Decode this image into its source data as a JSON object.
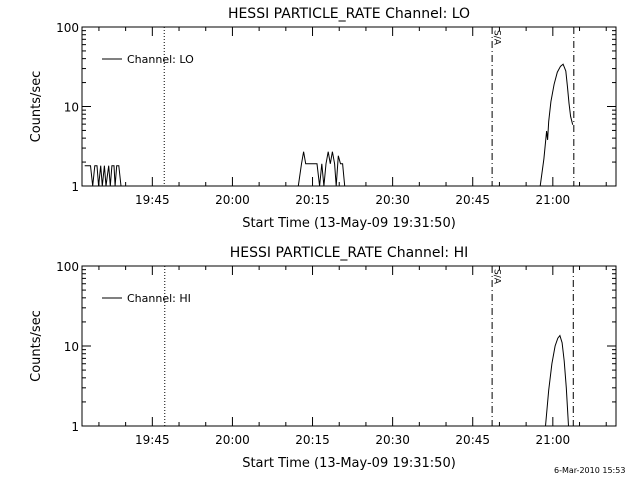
{
  "footer": {
    "timestamp": "6-Mar-2010 15:53"
  },
  "chart_data": [
    {
      "type": "line",
      "title": "HESSI PARTICLE_RATE Channel: LO",
      "xlabel": "Start Time (13-May-09 19:31:50)",
      "ylabel": "Counts/sec",
      "x_axis_unit": "minutes after 19:31:50 (13-May-09)",
      "xlim": [
        0,
        100
      ],
      "ylim": [
        1,
        100
      ],
      "yscale": "log",
      "x_ticks": [
        {
          "t": 13.17,
          "label": "19:45"
        },
        {
          "t": 28.17,
          "label": "20:00"
        },
        {
          "t": 43.17,
          "label": "20:15"
        },
        {
          "t": 58.17,
          "label": "20:30"
        },
        {
          "t": 73.17,
          "label": "20:45"
        },
        {
          "t": 88.17,
          "label": "21:00"
        }
      ],
      "y_ticks": [
        {
          "v": 1,
          "label": "1"
        },
        {
          "v": 10,
          "label": "10"
        },
        {
          "v": 100,
          "label": "100"
        }
      ],
      "grid": false,
      "legend": {
        "position": "top-left",
        "entries": [
          "Channel: LO"
        ]
      },
      "annotations": [
        {
          "text": "S/A",
          "at_t": 76.9
        }
      ],
      "vlines": [
        {
          "t": 15.4,
          "style": "dotted"
        },
        {
          "t": 76.8,
          "style": "dash-dot"
        },
        {
          "t": 92.1,
          "style": "dash-dot"
        }
      ],
      "series": [
        {
          "name": "Channel: LO",
          "x": [
            0.5,
            1.6,
            2.0,
            2.4,
            2.8,
            3.1,
            3.5,
            3.8,
            4.2,
            4.5,
            5.0,
            5.3,
            5.6,
            6.0,
            6.2,
            6.5,
            6.9,
            7.3
          ],
          "y": [
            1.8,
            1.8,
            1.0,
            1.8,
            1.8,
            1.0,
            1.8,
            1.0,
            1.8,
            1.0,
            1.8,
            1.0,
            1.8,
            1.8,
            1.0,
            1.8,
            1.8,
            1.0
          ],
          "segments": [
            {
              "x": [
                0.5,
                1.6,
                2.0,
                2.4,
                2.8,
                3.1,
                3.5,
                3.8,
                4.2,
                4.5,
                5.0,
                5.3,
                5.6,
                6.0,
                6.2,
                6.5,
                6.9,
                7.3
              ],
              "y": [
                1.8,
                1.8,
                1.0,
                1.8,
                1.8,
                1.0,
                1.8,
                1.0,
                1.8,
                1.0,
                1.8,
                1.0,
                1.8,
                1.8,
                1.0,
                1.8,
                1.8,
                1.0
              ]
            },
            {
              "x": [
                40.5,
                41.1,
                41.5,
                41.9,
                42.3,
                44.0,
                44.5,
                44.9,
                45.3,
                45.7,
                46.1,
                46.5,
                46.9,
                47.3,
                47.6,
                48.0,
                48.4,
                48.8,
                49.2
              ],
              "y": [
                1.0,
                1.9,
                2.7,
                1.9,
                1.9,
                1.9,
                1.0,
                1.9,
                1.0,
                1.9,
                2.7,
                1.9,
                2.7,
                1.9,
                1.0,
                2.4,
                1.9,
                1.9,
                1.0
              ]
            },
            {
              "x": [
                85.8,
                86.5,
                87.0,
                87.2,
                87.4,
                87.8,
                88.4,
                89.0,
                89.6,
                90.1,
                90.6,
                90.9,
                91.2,
                91.5,
                91.9
              ],
              "y": [
                1.0,
                2.2,
                4.9,
                3.8,
                6.5,
                11.5,
                19,
                27,
                32,
                34,
                28,
                18,
                11,
                7.5,
                5.9
              ]
            }
          ]
        }
      ]
    },
    {
      "type": "line",
      "title": "HESSI PARTICLE_RATE Channel: HI",
      "xlabel": "Start Time (13-May-09 19:31:50)",
      "ylabel": "Counts/sec",
      "x_axis_unit": "minutes after 19:31:50 (13-May-09)",
      "xlim": [
        0,
        100
      ],
      "ylim": [
        1,
        100
      ],
      "yscale": "log",
      "x_ticks": [
        {
          "t": 13.17,
          "label": "19:45"
        },
        {
          "t": 28.17,
          "label": "20:00"
        },
        {
          "t": 43.17,
          "label": "20:15"
        },
        {
          "t": 58.17,
          "label": "20:30"
        },
        {
          "t": 73.17,
          "label": "20:45"
        },
        {
          "t": 88.17,
          "label": "21:00"
        }
      ],
      "y_ticks": [
        {
          "v": 1,
          "label": "1"
        },
        {
          "v": 10,
          "label": "10"
        },
        {
          "v": 100,
          "label": "100"
        }
      ],
      "grid": false,
      "legend": {
        "position": "top-left",
        "entries": [
          "Channel: HI"
        ]
      },
      "annotations": [
        {
          "text": "S/A",
          "at_t": 76.9
        }
      ],
      "vlines": [
        {
          "t": 15.5,
          "style": "dotted"
        },
        {
          "t": 76.8,
          "style": "dash-dot"
        },
        {
          "t": 92.0,
          "style": "dash-dot"
        }
      ],
      "series": [
        {
          "name": "Channel: HI",
          "x": [
            86.8,
            87.4,
            88.0,
            88.6,
            89.1,
            89.5,
            89.9,
            90.3,
            90.7,
            91.1
          ],
          "y": [
            1.0,
            2.8,
            6.0,
            10.0,
            12.5,
            13.5,
            11.0,
            6.5,
            3.0,
            1.0
          ],
          "segments": [
            {
              "x": [
                86.8,
                87.4,
                88.0,
                88.6,
                89.1,
                89.5,
                89.9,
                90.3,
                90.7,
                91.1
              ],
              "y": [
                1.0,
                2.8,
                6.0,
                10.0,
                12.5,
                13.5,
                11.0,
                6.5,
                3.0,
                1.0
              ]
            }
          ]
        }
      ]
    }
  ]
}
